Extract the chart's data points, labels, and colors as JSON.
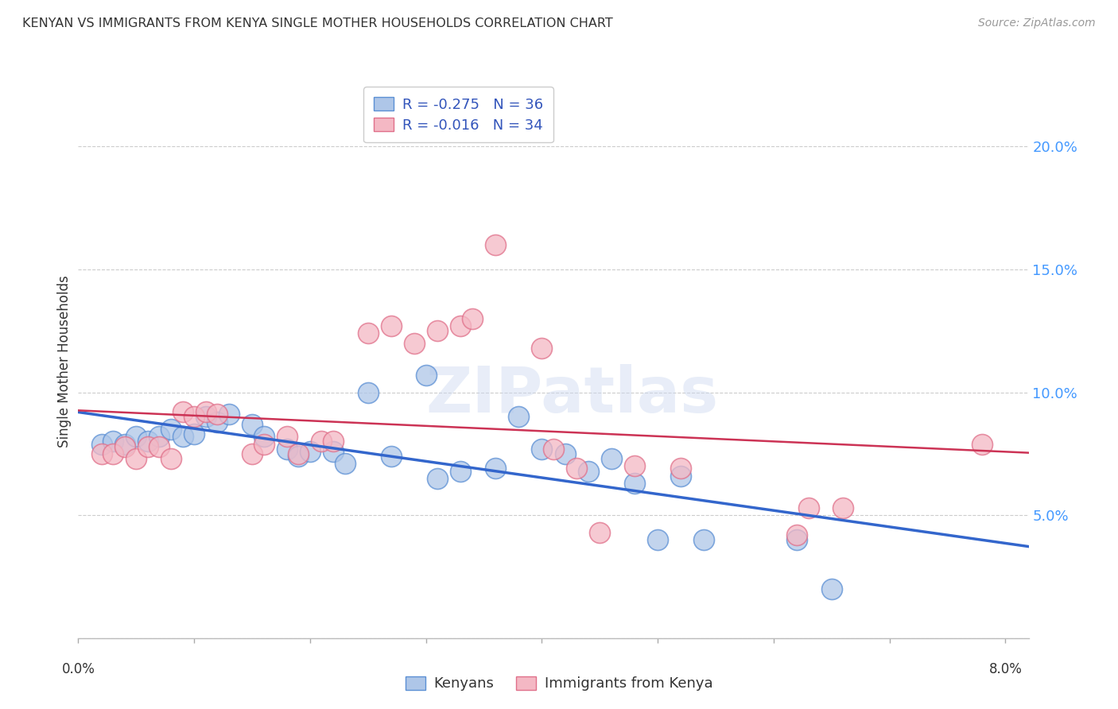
{
  "title": "KENYAN VS IMMIGRANTS FROM KENYA SINGLE MOTHER HOUSEHOLDS CORRELATION CHART",
  "source": "Source: ZipAtlas.com",
  "ylabel": "Single Mother Households",
  "legend_labels": [
    "Kenyans",
    "Immigrants from Kenya"
  ],
  "legend_r_blue": "R = -0.275",
  "legend_n_blue": "N = 36",
  "legend_r_pink": "R = -0.016",
  "legend_n_pink": "N = 34",
  "blue_color": "#aec6e8",
  "pink_color": "#f4b8c4",
  "blue_edge_color": "#5b8fd4",
  "pink_edge_color": "#e0708a",
  "blue_line_color": "#3366cc",
  "pink_line_color": "#cc3355",
  "watermark": "ZIPatlas",
  "blue_scatter": [
    [
      0.002,
      0.079
    ],
    [
      0.003,
      0.08
    ],
    [
      0.004,
      0.079
    ],
    [
      0.005,
      0.082
    ],
    [
      0.006,
      0.08
    ],
    [
      0.007,
      0.082
    ],
    [
      0.008,
      0.085
    ],
    [
      0.009,
      0.082
    ],
    [
      0.01,
      0.083
    ],
    [
      0.011,
      0.09
    ],
    [
      0.012,
      0.088
    ],
    [
      0.013,
      0.091
    ],
    [
      0.015,
      0.087
    ],
    [
      0.016,
      0.082
    ],
    [
      0.018,
      0.077
    ],
    [
      0.019,
      0.074
    ],
    [
      0.02,
      0.076
    ],
    [
      0.022,
      0.076
    ],
    [
      0.023,
      0.071
    ],
    [
      0.025,
      0.1
    ],
    [
      0.027,
      0.074
    ],
    [
      0.03,
      0.107
    ],
    [
      0.031,
      0.065
    ],
    [
      0.033,
      0.068
    ],
    [
      0.036,
      0.069
    ],
    [
      0.038,
      0.09
    ],
    [
      0.04,
      0.077
    ],
    [
      0.042,
      0.075
    ],
    [
      0.044,
      0.068
    ],
    [
      0.046,
      0.073
    ],
    [
      0.048,
      0.063
    ],
    [
      0.05,
      0.04
    ],
    [
      0.052,
      0.066
    ],
    [
      0.054,
      0.04
    ],
    [
      0.062,
      0.04
    ],
    [
      0.065,
      0.02
    ]
  ],
  "pink_scatter": [
    [
      0.002,
      0.075
    ],
    [
      0.003,
      0.075
    ],
    [
      0.004,
      0.078
    ],
    [
      0.005,
      0.073
    ],
    [
      0.006,
      0.078
    ],
    [
      0.007,
      0.078
    ],
    [
      0.008,
      0.073
    ],
    [
      0.009,
      0.092
    ],
    [
      0.01,
      0.09
    ],
    [
      0.011,
      0.092
    ],
    [
      0.012,
      0.091
    ],
    [
      0.015,
      0.075
    ],
    [
      0.016,
      0.079
    ],
    [
      0.018,
      0.082
    ],
    [
      0.019,
      0.075
    ],
    [
      0.021,
      0.08
    ],
    [
      0.022,
      0.08
    ],
    [
      0.025,
      0.124
    ],
    [
      0.027,
      0.127
    ],
    [
      0.029,
      0.12
    ],
    [
      0.031,
      0.125
    ],
    [
      0.033,
      0.127
    ],
    [
      0.034,
      0.13
    ],
    [
      0.036,
      0.16
    ],
    [
      0.04,
      0.118
    ],
    [
      0.041,
      0.077
    ],
    [
      0.043,
      0.069
    ],
    [
      0.045,
      0.043
    ],
    [
      0.048,
      0.07
    ],
    [
      0.052,
      0.069
    ],
    [
      0.062,
      0.042
    ],
    [
      0.063,
      0.053
    ],
    [
      0.066,
      0.053
    ],
    [
      0.078,
      0.079
    ]
  ],
  "xlim": [
    0.0,
    0.082
  ],
  "ylim": [
    0.0,
    0.225
  ],
  "yticks": [
    0.0,
    0.05,
    0.1,
    0.15,
    0.2
  ],
  "ytick_labels": [
    "",
    "5.0%",
    "10.0%",
    "15.0%",
    "20.0%"
  ],
  "xtick_positions": [
    0.0,
    0.01,
    0.02,
    0.03,
    0.04,
    0.05,
    0.06,
    0.07,
    0.08
  ],
  "background_color": "#ffffff",
  "grid_color": "#cccccc"
}
